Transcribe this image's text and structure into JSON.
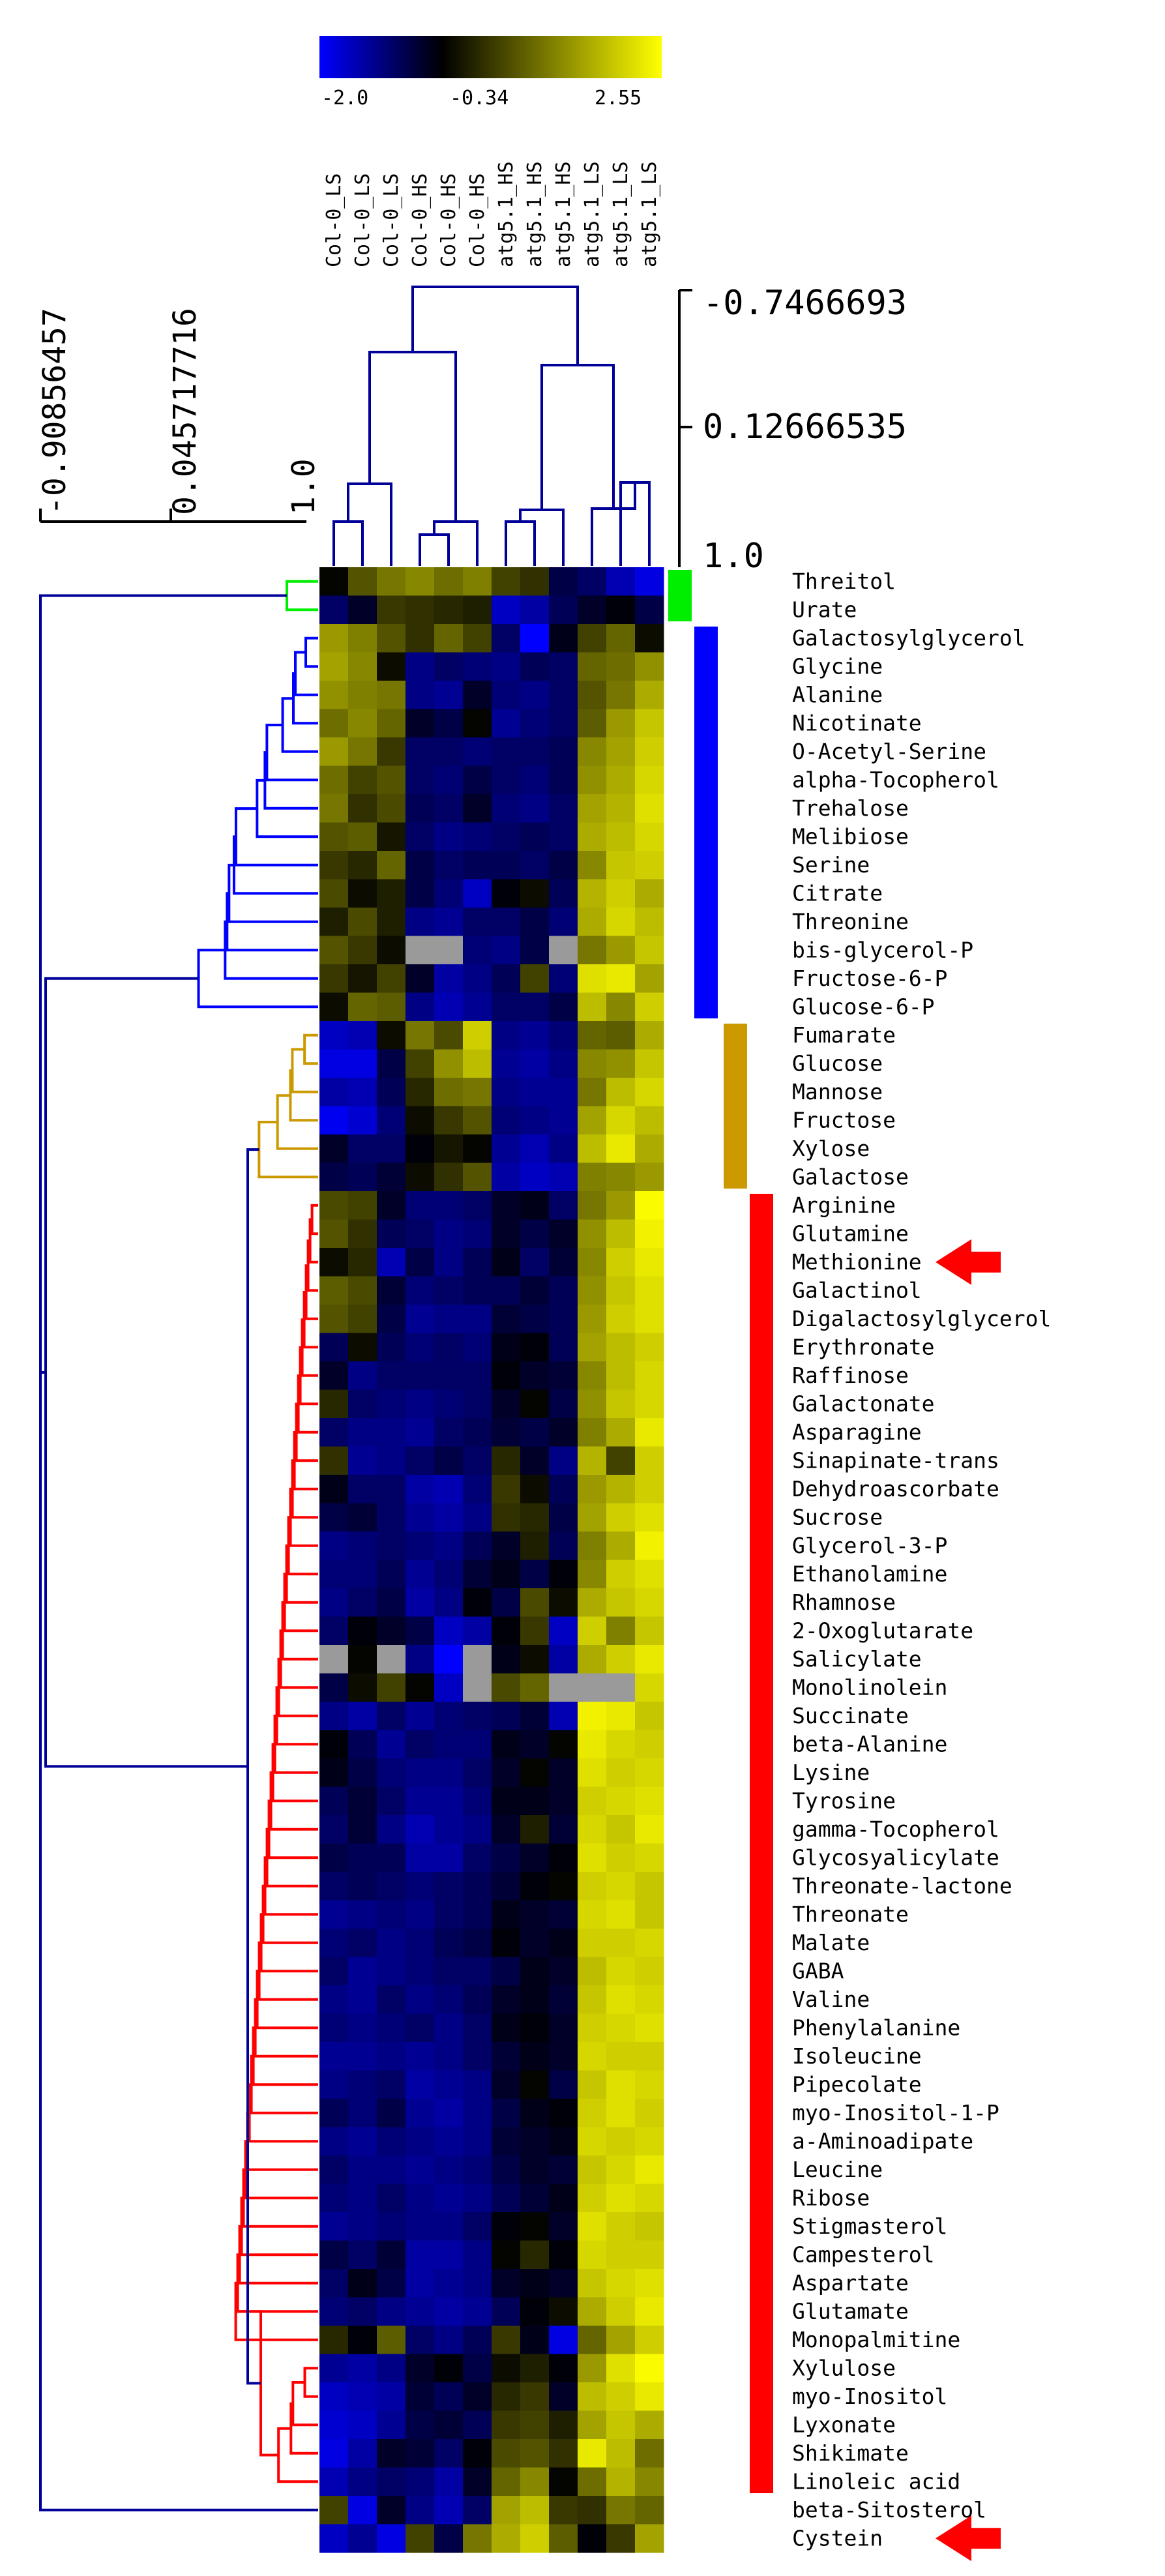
{
  "chart_data": {
    "type": "heatmap",
    "color_scale": {
      "min": -2.0,
      "mid": -0.34,
      "max": 2.55,
      "tick_labels": [
        "-2.0",
        "-0.34",
        "2.55"
      ],
      "colors": {
        "low": "#0000ff",
        "mid": "#000000",
        "high": "#ffff00",
        "missing": "#9a9a9a"
      }
    },
    "columns": [
      "Col-0_LS",
      "Col-0_LS",
      "Col-0_LS",
      "Col-0_HS",
      "Col-0_HS",
      "Col-0_HS",
      "atg5.1_HS",
      "atg5.1_HS",
      "atg5.1_HS",
      "atg5.1_LS",
      "atg5.1_LS",
      "atg5.1_LS"
    ],
    "column_tree_scale": [
      "-0.7466693",
      "0.12666535",
      "1.0"
    ],
    "row_tree_scale": [
      "-0.90856457",
      "0.045717716",
      "1.0"
    ],
    "clusters": [
      {
        "color": "#00ee00",
        "rows": [
          0,
          1
        ]
      },
      {
        "color": "#0000ff",
        "rows": [
          2,
          15
        ]
      },
      {
        "color": "#cc9900",
        "rows": [
          16,
          21
        ]
      },
      {
        "color": "#ff0000",
        "rows": [
          22,
          67
        ]
      }
    ],
    "highlighted_rows": [
      "Methionine",
      "Cystein"
    ],
    "highlight_color": "#ff0000",
    "rows": [
      {
        "name": "Threitol",
        "values": [
          -0.3,
          0.6,
          1.0,
          1.2,
          0.9,
          1.1,
          0.4,
          0.2,
          -0.8,
          -1.0,
          -1.5,
          -1.8
        ]
      },
      {
        "name": "Urate",
        "values": [
          -1.0,
          -0.6,
          0.3,
          0.2,
          0.1,
          0.0,
          -1.6,
          -1.4,
          -0.9,
          -0.6,
          -0.4,
          -0.8
        ]
      },
      {
        "name": "Galactosylglycerol",
        "values": [
          1.4,
          1.1,
          0.6,
          0.2,
          0.8,
          0.4,
          -1.0,
          -2.0,
          -0.5,
          0.4,
          0.8,
          -0.2
        ]
      },
      {
        "name": "Glycine",
        "values": [
          1.5,
          1.2,
          -0.2,
          -1.2,
          -1.0,
          -1.1,
          -1.2,
          -0.9,
          -1.0,
          0.8,
          0.9,
          1.3
        ]
      },
      {
        "name": "Alanine",
        "values": [
          1.3,
          1.1,
          1.0,
          -1.2,
          -1.3,
          -0.6,
          -1.1,
          -1.2,
          -1.0,
          0.6,
          1.0,
          1.6
        ]
      },
      {
        "name": "Nicotinate",
        "values": [
          0.9,
          1.2,
          0.8,
          -0.6,
          -0.8,
          -0.3,
          -1.3,
          -1.1,
          -1.0,
          0.7,
          1.4,
          1.9
        ]
      },
      {
        "name": "O-Acetyl-Serine",
        "values": [
          1.4,
          1.0,
          0.3,
          -1.0,
          -1.0,
          -1.1,
          -1.0,
          -1.0,
          -0.9,
          1.2,
          1.5,
          2.0
        ]
      },
      {
        "name": "alpha-Tocopherol",
        "values": [
          0.9,
          0.4,
          0.6,
          -1.0,
          -1.1,
          -0.8,
          -1.0,
          -1.1,
          -0.9,
          1.3,
          1.6,
          2.1
        ]
      },
      {
        "name": "Trehalose",
        "values": [
          1.0,
          0.2,
          0.5,
          -0.9,
          -1.0,
          -0.6,
          -1.1,
          -1.2,
          -1.0,
          1.5,
          1.7,
          2.2
        ]
      },
      {
        "name": "Melibiose",
        "values": [
          0.6,
          0.7,
          -0.1,
          -1.0,
          -1.2,
          -1.1,
          -1.0,
          -0.9,
          -1.0,
          1.6,
          1.8,
          2.1
        ]
      },
      {
        "name": "Serine",
        "values": [
          0.3,
          0.1,
          0.8,
          -0.8,
          -1.0,
          -0.9,
          -0.9,
          -1.0,
          -0.8,
          1.2,
          1.9,
          2.0
        ]
      },
      {
        "name": "Citrate",
        "values": [
          0.5,
          -0.2,
          0.0,
          -0.8,
          -1.1,
          -1.6,
          -0.4,
          -0.2,
          -0.9,
          1.7,
          2.0,
          1.6
        ]
      },
      {
        "name": "Threonine",
        "values": [
          0.0,
          0.5,
          0.0,
          -1.2,
          -1.3,
          -1.0,
          -1.0,
          -0.8,
          -1.1,
          1.6,
          2.1,
          1.8
        ]
      },
      {
        "name": "bis-glycerol-P",
        "values": [
          0.6,
          0.3,
          -0.2,
          null,
          null,
          -1.1,
          -1.2,
          -0.8,
          null,
          1.0,
          1.4,
          1.9
        ]
      },
      {
        "name": "Fructose-6-P",
        "values": [
          0.3,
          -0.1,
          0.4,
          -0.6,
          -1.4,
          -1.2,
          -0.9,
          0.4,
          -1.1,
          2.2,
          2.3,
          1.5
        ]
      },
      {
        "name": "Glucose-6-P",
        "values": [
          -0.2,
          0.8,
          0.7,
          -1.2,
          -1.5,
          -1.3,
          -1.0,
          -1.0,
          -0.8,
          1.8,
          1.2,
          2.0
        ]
      },
      {
        "name": "Fumarate",
        "values": [
          -1.6,
          -1.5,
          -0.2,
          1.0,
          0.5,
          2.0,
          -1.2,
          -1.3,
          -1.1,
          0.8,
          0.7,
          1.6
        ]
      },
      {
        "name": "Glucose",
        "values": [
          -1.8,
          -1.8,
          -0.8,
          0.4,
          1.3,
          1.8,
          -1.3,
          -1.4,
          -1.2,
          1.2,
          1.3,
          1.9
        ]
      },
      {
        "name": "Mannose",
        "values": [
          -1.4,
          -1.5,
          -0.9,
          0.1,
          0.9,
          1.0,
          -1.2,
          -1.3,
          -1.3,
          1.0,
          1.8,
          2.1
        ]
      },
      {
        "name": "Fructose",
        "values": [
          -1.9,
          -1.7,
          -1.1,
          -0.2,
          0.3,
          0.6,
          -1.1,
          -1.2,
          -1.3,
          1.5,
          2.1,
          1.8
        ]
      },
      {
        "name": "Xylose",
        "values": [
          -0.6,
          -1.0,
          -1.0,
          -0.4,
          -0.1,
          -0.3,
          -1.3,
          -1.5,
          -1.2,
          1.8,
          2.3,
          1.6
        ]
      },
      {
        "name": "Galactose",
        "values": [
          -0.8,
          -0.9,
          -0.7,
          -0.2,
          0.2,
          0.6,
          -1.4,
          -1.6,
          -1.5,
          1.1,
          1.2,
          1.4
        ]
      },
      {
        "name": "Arginine",
        "values": [
          0.5,
          0.4,
          -0.6,
          -1.1,
          -1.1,
          -1.0,
          -0.6,
          -0.5,
          -1.0,
          1.0,
          1.4,
          2.5
        ]
      },
      {
        "name": "Glutamine",
        "values": [
          0.6,
          0.2,
          -0.9,
          -1.0,
          -1.2,
          -1.1,
          -0.6,
          -0.8,
          -0.6,
          1.3,
          1.8,
          2.4
        ]
      },
      {
        "name": "Methionine",
        "values": [
          -0.2,
          0.1,
          -1.5,
          -0.8,
          -1.2,
          -0.9,
          -0.5,
          -1.0,
          -0.7,
          1.2,
          2.0,
          2.3
        ]
      },
      {
        "name": "Galactinol",
        "values": [
          0.7,
          0.5,
          -0.7,
          -1.1,
          -1.0,
          -0.9,
          -0.9,
          -0.7,
          -0.9,
          1.3,
          1.9,
          2.2
        ]
      },
      {
        "name": "Digalactosylglycerol",
        "values": [
          0.6,
          0.4,
          -0.8,
          -1.3,
          -1.2,
          -1.2,
          -0.7,
          -0.8,
          -0.9,
          1.4,
          2.0,
          2.2
        ]
      },
      {
        "name": "Erythronate",
        "values": [
          -0.9,
          -0.2,
          -0.9,
          -1.1,
          -1.0,
          -1.1,
          -0.5,
          -0.4,
          -0.9,
          1.5,
          1.8,
          2.0
        ]
      },
      {
        "name": "Raffinose",
        "values": [
          -0.6,
          -1.2,
          -1.0,
          -1.0,
          -1.0,
          -1.0,
          -0.4,
          -0.6,
          -0.7,
          1.2,
          1.8,
          2.1
        ]
      },
      {
        "name": "Galactonate",
        "values": [
          0.1,
          -1.0,
          -1.1,
          -1.2,
          -1.1,
          -1.0,
          -0.6,
          -0.3,
          -0.8,
          1.3,
          1.9,
          2.1
        ]
      },
      {
        "name": "Asparagine",
        "values": [
          -1.0,
          -1.2,
          -1.2,
          -1.3,
          -1.0,
          -0.9,
          -0.7,
          -0.8,
          -0.6,
          1.1,
          1.6,
          2.3
        ]
      },
      {
        "name": "Sinapinate-trans",
        "values": [
          0.2,
          -1.3,
          -1.2,
          -1.0,
          -0.8,
          -1.0,
          0.1,
          -0.6,
          -1.2,
          1.7,
          0.4,
          2.0
        ]
      },
      {
        "name": "Dehydroascorbate",
        "values": [
          -0.5,
          -1.0,
          -1.0,
          -1.4,
          -1.5,
          -1.1,
          0.3,
          -0.2,
          -0.9,
          1.4,
          1.7,
          2.0
        ]
      },
      {
        "name": "Sucrose",
        "values": [
          -0.8,
          -0.7,
          -1.0,
          -1.3,
          -1.4,
          -1.2,
          0.2,
          0.1,
          -0.8,
          1.5,
          2.0,
          2.2
        ]
      },
      {
        "name": "Glycerol-3-P",
        "values": [
          -1.2,
          -1.1,
          -1.0,
          -1.1,
          -1.2,
          -0.9,
          -0.6,
          0.0,
          -0.9,
          1.1,
          1.6,
          2.4
        ]
      },
      {
        "name": "Ethanolamine",
        "values": [
          -1.1,
          -1.1,
          -0.9,
          -1.3,
          -1.1,
          -0.7,
          -0.5,
          -0.8,
          -0.4,
          1.2,
          2.0,
          2.2
        ]
      },
      {
        "name": "Rhamnose",
        "values": [
          -1.2,
          -1.0,
          -0.8,
          -1.4,
          -1.2,
          -0.4,
          -0.8,
          0.5,
          -0.2,
          1.6,
          1.9,
          2.1
        ]
      },
      {
        "name": "2-Oxoglutarate",
        "values": [
          -1.0,
          -0.4,
          -0.6,
          -0.8,
          -1.6,
          -1.4,
          -0.4,
          0.3,
          -1.6,
          2.0,
          1.1,
          1.9
        ]
      },
      {
        "name": "Salicylate",
        "values": [
          null,
          -0.3,
          null,
          -1.2,
          -2.0,
          null,
          -0.5,
          -0.2,
          -1.4,
          1.6,
          2.0,
          2.3
        ]
      },
      {
        "name": "Monolinolein",
        "values": [
          -0.8,
          -0.2,
          0.4,
          -0.3,
          -1.6,
          null,
          0.5,
          0.8,
          null,
          null,
          null,
          2.1
        ]
      },
      {
        "name": "Succinate",
        "values": [
          -1.2,
          -1.4,
          -1.0,
          -1.3,
          -1.1,
          -1.0,
          -0.9,
          -0.7,
          -1.5,
          2.4,
          2.3,
          1.9
        ]
      },
      {
        "name": "beta-Alanine",
        "values": [
          -0.4,
          -0.9,
          -1.3,
          -1.0,
          -1.1,
          -1.1,
          -0.5,
          -0.6,
          -0.3,
          2.3,
          2.1,
          2.0
        ]
      },
      {
        "name": "Lysine",
        "values": [
          -0.5,
          -0.8,
          -1.1,
          -1.2,
          -1.2,
          -1.0,
          -0.6,
          -0.3,
          -0.6,
          2.2,
          2.0,
          2.1
        ]
      },
      {
        "name": "Tyrosine",
        "values": [
          -0.9,
          -0.7,
          -1.0,
          -1.3,
          -1.3,
          -1.1,
          -0.5,
          -0.5,
          -0.6,
          2.0,
          2.1,
          2.2
        ]
      },
      {
        "name": "gamma-Tocopherol",
        "values": [
          -1.0,
          -0.7,
          -1.2,
          -1.5,
          -1.3,
          -1.2,
          -0.6,
          0.0,
          -0.7,
          2.1,
          1.9,
          2.3
        ]
      },
      {
        "name": "Glycosyalicylate",
        "values": [
          -0.8,
          -0.9,
          -0.9,
          -1.4,
          -1.4,
          -1.0,
          -0.8,
          -0.6,
          -0.4,
          2.2,
          2.0,
          2.1
        ]
      },
      {
        "name": "Threonate-lactone",
        "values": [
          -1.0,
          -0.9,
          -1.0,
          -1.1,
          -1.0,
          -0.9,
          -0.7,
          -0.4,
          -0.3,
          2.0,
          2.1,
          1.9
        ]
      },
      {
        "name": "Threonate",
        "values": [
          -1.3,
          -1.2,
          -1.1,
          -1.2,
          -1.0,
          -0.9,
          -0.5,
          -0.6,
          -0.7,
          2.1,
          2.2,
          1.9
        ]
      },
      {
        "name": "Malate",
        "values": [
          -1.1,
          -1.0,
          -1.2,
          -1.1,
          -0.9,
          -0.8,
          -0.4,
          -0.6,
          -0.5,
          2.0,
          2.0,
          2.1
        ]
      },
      {
        "name": "GABA",
        "values": [
          -1.0,
          -1.3,
          -1.2,
          -1.1,
          -1.0,
          -1.0,
          -0.8,
          -0.5,
          -0.6,
          1.8,
          2.1,
          2.0
        ]
      },
      {
        "name": "Valine",
        "values": [
          -1.2,
          -1.3,
          -1.0,
          -1.2,
          -1.1,
          -0.9,
          -0.6,
          -0.5,
          -0.7,
          1.9,
          2.2,
          2.1
        ]
      },
      {
        "name": "Phenylalanine",
        "values": [
          -1.1,
          -1.2,
          -1.1,
          -1.0,
          -1.2,
          -1.0,
          -0.5,
          -0.4,
          -0.6,
          2.0,
          2.1,
          2.2
        ]
      },
      {
        "name": "Isoleucine",
        "values": [
          -1.3,
          -1.3,
          -1.2,
          -1.3,
          -1.2,
          -1.0,
          -0.7,
          -0.5,
          -0.6,
          2.1,
          2.0,
          2.0
        ]
      },
      {
        "name": "Pipecolate",
        "values": [
          -1.2,
          -1.1,
          -1.0,
          -1.4,
          -1.3,
          -1.2,
          -0.6,
          -0.3,
          -0.8,
          1.9,
          2.2,
          2.1
        ]
      },
      {
        "name": "myo-Inositol-1-P",
        "values": [
          -0.9,
          -1.1,
          -0.8,
          -1.3,
          -1.4,
          -1.2,
          -0.8,
          -0.5,
          -0.4,
          2.0,
          2.2,
          2.0
        ]
      },
      {
        "name": "a-Aminoadipate",
        "values": [
          -1.2,
          -1.3,
          -1.1,
          -1.2,
          -1.3,
          -1.2,
          -0.7,
          -0.6,
          -0.5,
          2.1,
          2.0,
          2.1
        ]
      },
      {
        "name": "Leucine",
        "values": [
          -1.0,
          -1.2,
          -1.2,
          -1.3,
          -1.2,
          -1.1,
          -0.8,
          -0.6,
          -0.7,
          1.9,
          2.1,
          2.3
        ]
      },
      {
        "name": "Ribose",
        "values": [
          -1.1,
          -1.2,
          -1.0,
          -1.2,
          -1.3,
          -1.2,
          -0.9,
          -0.7,
          -0.5,
          2.0,
          2.2,
          2.1
        ]
      },
      {
        "name": "Stigmasterol",
        "values": [
          -1.3,
          -1.2,
          -1.1,
          -1.2,
          -1.2,
          -1.0,
          -0.4,
          -0.3,
          -0.6,
          2.2,
          2.0,
          1.9
        ]
      },
      {
        "name": "Campesterol",
        "values": [
          -0.8,
          -1.0,
          -0.7,
          -1.4,
          -1.4,
          -1.2,
          -0.3,
          0.1,
          -0.4,
          2.1,
          2.0,
          2.0
        ]
      },
      {
        "name": "Aspartate",
        "values": [
          -1.0,
          -0.5,
          -0.8,
          -1.4,
          -1.3,
          -1.2,
          -0.6,
          -0.5,
          -0.6,
          1.9,
          2.1,
          2.2
        ]
      },
      {
        "name": "Glutamate",
        "values": [
          -1.1,
          -1.0,
          -1.2,
          -1.3,
          -1.4,
          -1.3,
          -0.9,
          -0.4,
          -0.2,
          1.6,
          2.0,
          2.3
        ]
      },
      {
        "name": "Monopalmitine",
        "values": [
          0.1,
          -0.4,
          0.7,
          -1.0,
          -1.2,
          -0.9,
          0.3,
          -0.5,
          -1.8,
          0.8,
          1.5,
          2.0
        ]
      },
      {
        "name": "Xylulose",
        "values": [
          -1.3,
          -1.4,
          -1.2,
          -0.6,
          -0.4,
          -0.8,
          -0.2,
          0.0,
          -0.4,
          1.4,
          2.2,
          2.5
        ]
      },
      {
        "name": "myo-Inositol",
        "values": [
          -1.6,
          -1.5,
          -1.4,
          -0.7,
          -0.9,
          -0.6,
          0.1,
          0.3,
          -0.6,
          1.8,
          2.0,
          2.3
        ]
      },
      {
        "name": "Lyxonate",
        "values": [
          -1.7,
          -1.6,
          -1.3,
          -0.8,
          -0.7,
          -0.9,
          0.3,
          0.4,
          0.0,
          1.5,
          1.9,
          1.6
        ]
      },
      {
        "name": "Shikimate",
        "values": [
          -1.8,
          -1.4,
          -0.6,
          -0.7,
          -1.0,
          -0.4,
          0.5,
          0.6,
          0.2,
          2.3,
          1.8,
          0.9
        ]
      },
      {
        "name": "Linoleic acid",
        "values": [
          -1.5,
          -1.2,
          -1.0,
          -1.1,
          -1.4,
          -0.6,
          0.8,
          1.2,
          -0.3,
          0.9,
          1.7,
          1.2
        ]
      },
      {
        "name": "beta-Sitosterol",
        "values": [
          0.4,
          -1.8,
          -0.6,
          -1.2,
          -1.5,
          -1.0,
          1.5,
          1.8,
          0.3,
          0.2,
          1.0,
          0.8
        ]
      },
      {
        "name": "Cystein",
        "values": [
          -1.6,
          -1.3,
          -1.8,
          0.4,
          -0.8,
          1.0,
          1.6,
          2.0,
          0.7,
          -0.4,
          0.3,
          1.5
        ]
      }
    ]
  }
}
